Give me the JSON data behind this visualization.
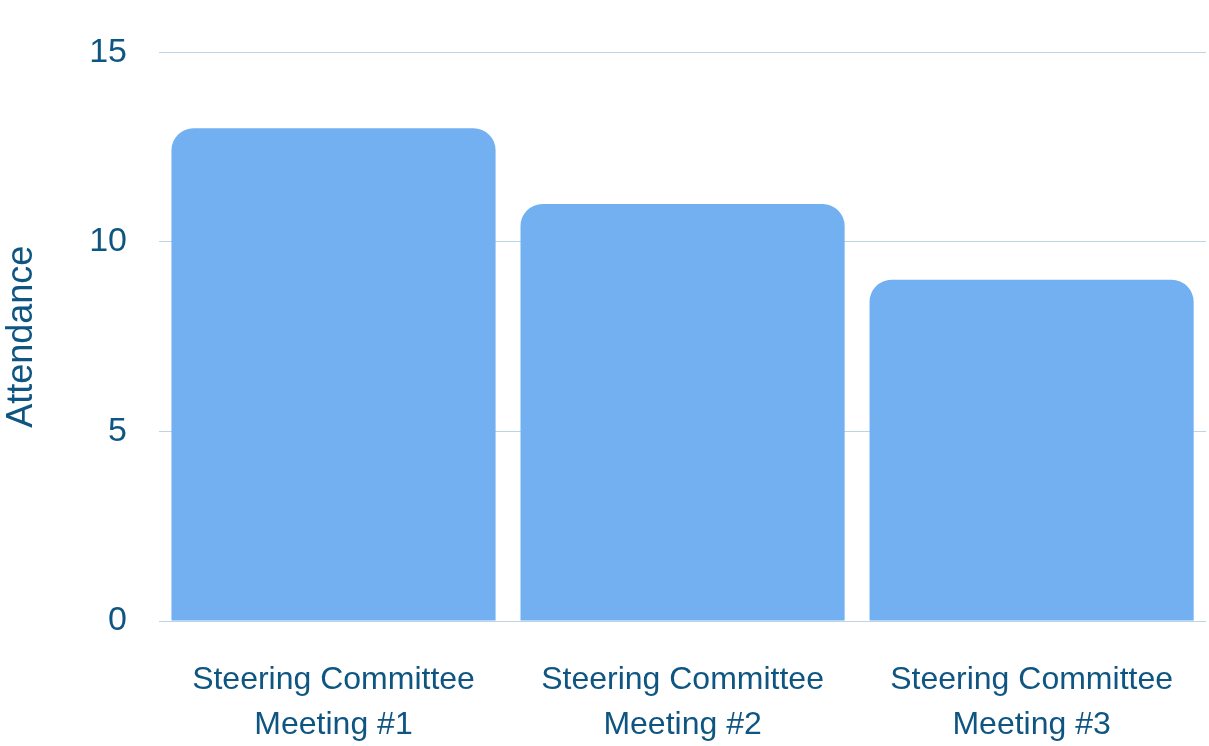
{
  "chart_data": {
    "type": "bar",
    "ylabel": "Attendance",
    "categories": [
      "Steering Committee Meeting #1",
      "Steering Committee Meeting #2",
      "Steering Committee Meeting #3"
    ],
    "values": [
      13,
      11,
      9
    ],
    "color": "#72b0f2",
    "ylim": [
      0,
      15
    ],
    "yticks": [
      0,
      5,
      10,
      15
    ],
    "grid": "y"
  }
}
